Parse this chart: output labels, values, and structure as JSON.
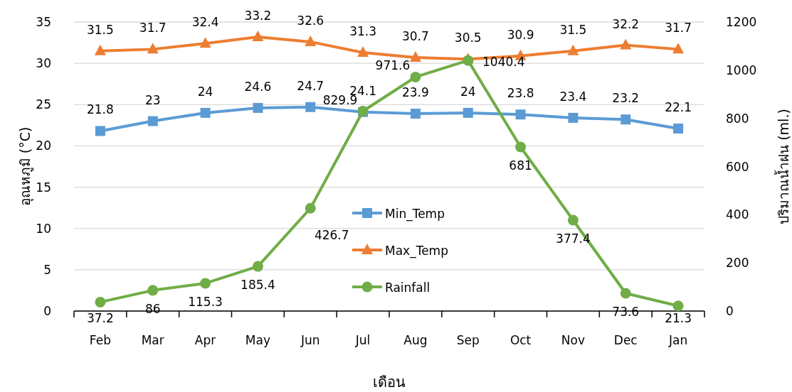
{
  "chart_data": {
    "type": "line",
    "xlabel": "เดือน",
    "ylabel": "อุณหภูมิ (°C)",
    "y2label": "ปริมาณน้ำฝน (ml.)",
    "categories": [
      "Feb",
      "Mar",
      "Apr",
      "May",
      "Jun",
      "Jul",
      "Aug",
      "Sep",
      "Oct",
      "Nov",
      "Dec",
      "Jan"
    ],
    "series": [
      {
        "name": "Min_Temp",
        "color": "#5b9bd5",
        "marker": "square",
        "values": [
          21.8,
          23,
          24,
          24.6,
          24.7,
          24.1,
          23.9,
          24,
          23.8,
          23.4,
          23.2,
          22.1
        ]
      },
      {
        "name": "Max_Temp",
        "color": "#ed7d31",
        "marker": "triangle",
        "values": [
          31.5,
          31.7,
          32.4,
          33.2,
          32.6,
          31.3,
          30.7,
          30.5,
          30.9,
          31.5,
          32.2,
          31.7
        ]
      },
      {
        "name": "Rainfall",
        "color": "#70ad47",
        "marker": "circle",
        "axis": "y2",
        "values": [
          37.2,
          86,
          115.3,
          185.4,
          426.7,
          829.9,
          971.6,
          1040.4,
          681,
          377.4,
          73.6,
          21.3
        ]
      }
    ],
    "ylim": [
      0,
      35
    ],
    "yticks": [
      0,
      5,
      10,
      15,
      20,
      25,
      30,
      35
    ],
    "y2lim": [
      0,
      1200
    ],
    "y2ticks": [
      0,
      200,
      400,
      600,
      800,
      1000,
      1200
    ],
    "grid": "y",
    "legend": "center",
    "data_labels": true
  }
}
